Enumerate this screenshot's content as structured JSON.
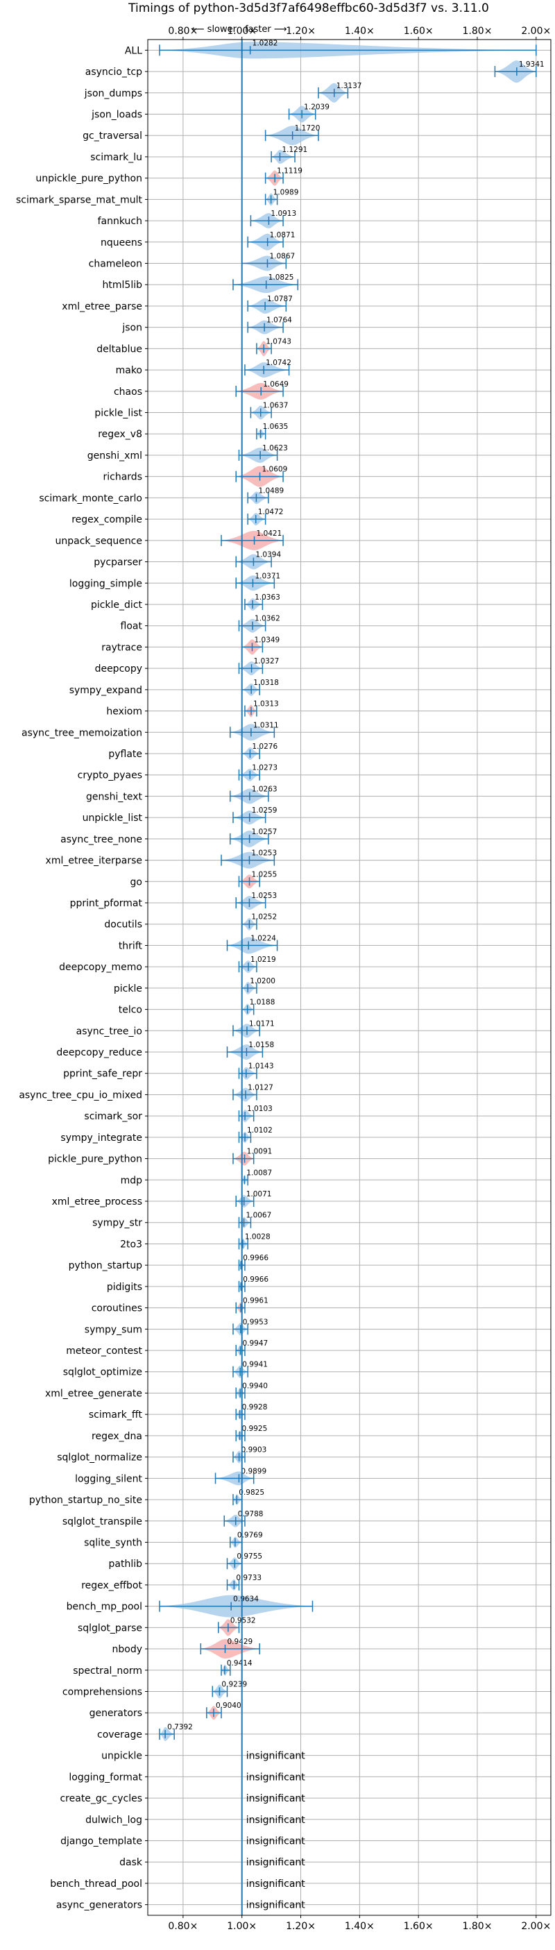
{
  "chart_data": {
    "type": "violin",
    "title": "Timings of python-3d5d3f7af6498effbc60-3d5d3f7 vs. 3.11.0",
    "xlim": [
      0.68,
      2.05
    ],
    "xticks": [
      0.8,
      1.0,
      1.2,
      1.4,
      1.6,
      1.8,
      2.0
    ],
    "xtick_labels": [
      "0.80×",
      "1.00×",
      "1.20×",
      "1.40×",
      "1.60×",
      "1.80×",
      "2.00×"
    ],
    "reference_line": 1.0,
    "direction_hint": {
      "slower": "⟵ slower",
      "faster": "faster ⟶"
    },
    "insignificant_label": "insignificant",
    "colors": {
      "faster": "#9fc5e8",
      "slower": "#f4a6a6",
      "line": "#1f77b4"
    },
    "benchmarks": [
      {
        "name": "ALL",
        "value": 1.0282,
        "label": "1.0282",
        "lo": 0.72,
        "hi": 2.0,
        "width": 12,
        "color": "faster"
      },
      {
        "name": "asyncio_tcp",
        "value": 1.9341,
        "label": "1.9341",
        "lo": 1.86,
        "hi": 2.0,
        "width": 16,
        "color": "faster"
      },
      {
        "name": "json_dumps",
        "value": 1.3137,
        "label": "1.3137",
        "lo": 1.26,
        "hi": 1.36,
        "width": 14,
        "color": "faster"
      },
      {
        "name": "json_loads",
        "value": 1.2039,
        "label": "1.2039",
        "lo": 1.16,
        "hi": 1.25,
        "width": 12,
        "color": "faster"
      },
      {
        "name": "gc_traversal",
        "value": 1.172,
        "label": "1.1720",
        "lo": 1.08,
        "hi": 1.26,
        "width": 14,
        "color": "faster"
      },
      {
        "name": "scimark_lu",
        "value": 1.1291,
        "label": "1.1291",
        "lo": 1.1,
        "hi": 1.18,
        "width": 10,
        "color": "faster"
      },
      {
        "name": "unpickle_pure_python",
        "value": 1.1119,
        "label": "1.1119",
        "lo": 1.08,
        "hi": 1.14,
        "width": 11,
        "color": "slower"
      },
      {
        "name": "scimark_sparse_mat_mult",
        "value": 1.0989,
        "label": "1.0989",
        "lo": 1.08,
        "hi": 1.12,
        "width": 9,
        "color": "faster"
      },
      {
        "name": "fannkuch",
        "value": 1.0913,
        "label": "1.0913",
        "lo": 1.03,
        "hi": 1.14,
        "width": 11,
        "color": "faster"
      },
      {
        "name": "nqueens",
        "value": 1.0871,
        "label": "1.0871",
        "lo": 1.02,
        "hi": 1.14,
        "width": 12,
        "color": "faster"
      },
      {
        "name": "chameleon",
        "value": 1.0867,
        "label": "1.0867",
        "lo": 1.0,
        "hi": 1.15,
        "width": 11,
        "color": "faster"
      },
      {
        "name": "html5lib",
        "value": 1.0825,
        "label": "1.0825",
        "lo": 0.97,
        "hi": 1.19,
        "width": 12,
        "color": "faster"
      },
      {
        "name": "xml_etree_parse",
        "value": 1.0787,
        "label": "1.0787",
        "lo": 1.02,
        "hi": 1.15,
        "width": 11,
        "color": "faster"
      },
      {
        "name": "json",
        "value": 1.0764,
        "label": "1.0764",
        "lo": 1.02,
        "hi": 1.14,
        "width": 10,
        "color": "faster"
      },
      {
        "name": "deltablue",
        "value": 1.0743,
        "label": "1.0743",
        "lo": 1.05,
        "hi": 1.1,
        "width": 11,
        "color": "slower"
      },
      {
        "name": "mako",
        "value": 1.0742,
        "label": "1.0742",
        "lo": 1.01,
        "hi": 1.16,
        "width": 11,
        "color": "faster"
      },
      {
        "name": "chaos",
        "value": 1.0649,
        "label": "1.0649",
        "lo": 0.98,
        "hi": 1.14,
        "width": 12,
        "color": "slower"
      },
      {
        "name": "pickle_list",
        "value": 1.0637,
        "label": "1.0637",
        "lo": 1.03,
        "hi": 1.1,
        "width": 10,
        "color": "faster"
      },
      {
        "name": "regex_v8",
        "value": 1.0635,
        "label": "1.0635",
        "lo": 1.05,
        "hi": 1.08,
        "width": 7,
        "color": "faster"
      },
      {
        "name": "genshi_xml",
        "value": 1.0623,
        "label": "1.0623",
        "lo": 0.99,
        "hi": 1.12,
        "width": 11,
        "color": "faster"
      },
      {
        "name": "richards",
        "value": 1.0609,
        "label": "1.0609",
        "lo": 0.98,
        "hi": 1.14,
        "width": 15,
        "color": "slower"
      },
      {
        "name": "scimark_monte_carlo",
        "value": 1.0489,
        "label": "1.0489",
        "lo": 1.02,
        "hi": 1.09,
        "width": 9,
        "color": "faster"
      },
      {
        "name": "regex_compile",
        "value": 1.0472,
        "label": "1.0472",
        "lo": 1.02,
        "hi": 1.08,
        "width": 9,
        "color": "faster"
      },
      {
        "name": "unpack_sequence",
        "value": 1.0421,
        "label": "1.0421",
        "lo": 0.93,
        "hi": 1.14,
        "width": 14,
        "color": "slower"
      },
      {
        "name": "pycparser",
        "value": 1.0394,
        "label": "1.0394",
        "lo": 0.98,
        "hi": 1.1,
        "width": 11,
        "color": "faster"
      },
      {
        "name": "logging_simple",
        "value": 1.0371,
        "label": "1.0371",
        "lo": 0.98,
        "hi": 1.11,
        "width": 11,
        "color": "faster"
      },
      {
        "name": "pickle_dict",
        "value": 1.0363,
        "label": "1.0363",
        "lo": 1.01,
        "hi": 1.07,
        "width": 9,
        "color": "faster"
      },
      {
        "name": "float",
        "value": 1.0362,
        "label": "1.0362",
        "lo": 0.99,
        "hi": 1.08,
        "width": 10,
        "color": "faster"
      },
      {
        "name": "raytrace",
        "value": 1.0349,
        "label": "1.0349",
        "lo": 1.0,
        "hi": 1.07,
        "width": 11,
        "color": "slower"
      },
      {
        "name": "deepcopy",
        "value": 1.0327,
        "label": "1.0327",
        "lo": 0.99,
        "hi": 1.07,
        "width": 10,
        "color": "faster"
      },
      {
        "name": "sympy_expand",
        "value": 1.0318,
        "label": "1.0318",
        "lo": 1.0,
        "hi": 1.06,
        "width": 9,
        "color": "faster"
      },
      {
        "name": "hexiom",
        "value": 1.0313,
        "label": "1.0313",
        "lo": 1.01,
        "hi": 1.05,
        "width": 9,
        "color": "slower"
      },
      {
        "name": "async_tree_memoization",
        "value": 1.0311,
        "label": "1.0311",
        "lo": 0.96,
        "hi": 1.11,
        "width": 12,
        "color": "faster"
      },
      {
        "name": "pyflate",
        "value": 1.0276,
        "label": "1.0276",
        "lo": 1.0,
        "hi": 1.06,
        "width": 9,
        "color": "faster"
      },
      {
        "name": "crypto_pyaes",
        "value": 1.0273,
        "label": "1.0273",
        "lo": 0.99,
        "hi": 1.06,
        "width": 9,
        "color": "faster"
      },
      {
        "name": "genshi_text",
        "value": 1.0263,
        "label": "1.0263",
        "lo": 0.96,
        "hi": 1.09,
        "width": 11,
        "color": "faster"
      },
      {
        "name": "unpickle_list",
        "value": 1.0259,
        "label": "1.0259",
        "lo": 0.97,
        "hi": 1.08,
        "width": 10,
        "color": "faster"
      },
      {
        "name": "async_tree_none",
        "value": 1.0257,
        "label": "1.0257",
        "lo": 0.96,
        "hi": 1.09,
        "width": 12,
        "color": "faster"
      },
      {
        "name": "xml_etree_iterparse",
        "value": 1.0253,
        "label": "1.0253",
        "lo": 0.93,
        "hi": 1.11,
        "width": 12,
        "color": "faster"
      },
      {
        "name": "go",
        "value": 1.0255,
        "label": "1.0255",
        "lo": 0.99,
        "hi": 1.06,
        "width": 10,
        "color": "slower"
      },
      {
        "name": "pprint_pformat",
        "value": 1.0253,
        "label": "1.0253",
        "lo": 0.98,
        "hi": 1.08,
        "width": 10,
        "color": "faster"
      },
      {
        "name": "docutils",
        "value": 1.0252,
        "label": "1.0252",
        "lo": 1.0,
        "hi": 1.05,
        "width": 9,
        "color": "faster"
      },
      {
        "name": "thrift",
        "value": 1.0224,
        "label": "1.0224",
        "lo": 0.95,
        "hi": 1.12,
        "width": 12,
        "color": "faster"
      },
      {
        "name": "deepcopy_memo",
        "value": 1.0219,
        "label": "1.0219",
        "lo": 0.99,
        "hi": 1.05,
        "width": 9,
        "color": "faster"
      },
      {
        "name": "pickle",
        "value": 1.02,
        "label": "1.0200",
        "lo": 1.0,
        "hi": 1.05,
        "width": 9,
        "color": "faster"
      },
      {
        "name": "telco",
        "value": 1.0188,
        "label": "1.0188",
        "lo": 1.0,
        "hi": 1.04,
        "width": 8,
        "color": "faster"
      },
      {
        "name": "async_tree_io",
        "value": 1.0171,
        "label": "1.0171",
        "lo": 0.97,
        "hi": 1.06,
        "width": 10,
        "color": "faster"
      },
      {
        "name": "deepcopy_reduce",
        "value": 1.0158,
        "label": "1.0158",
        "lo": 0.95,
        "hi": 1.07,
        "width": 11,
        "color": "faster"
      },
      {
        "name": "pprint_safe_repr",
        "value": 1.0143,
        "label": "1.0143",
        "lo": 0.99,
        "hi": 1.05,
        "width": 9,
        "color": "faster"
      },
      {
        "name": "async_tree_cpu_io_mixed",
        "value": 1.0127,
        "label": "1.0127",
        "lo": 0.97,
        "hi": 1.05,
        "width": 10,
        "color": "faster"
      },
      {
        "name": "scimark_sor",
        "value": 1.0103,
        "label": "1.0103",
        "lo": 0.99,
        "hi": 1.04,
        "width": 9,
        "color": "faster"
      },
      {
        "name": "sympy_integrate",
        "value": 1.0102,
        "label": "1.0102",
        "lo": 0.99,
        "hi": 1.03,
        "width": 8,
        "color": "faster"
      },
      {
        "name": "pickle_pure_python",
        "value": 1.0091,
        "label": "1.0091",
        "lo": 0.97,
        "hi": 1.04,
        "width": 10,
        "color": "slower"
      },
      {
        "name": "mdp",
        "value": 1.0087,
        "label": "1.0087",
        "lo": 1.0,
        "hi": 1.02,
        "width": 7,
        "color": "faster"
      },
      {
        "name": "xml_etree_process",
        "value": 1.0071,
        "label": "1.0071",
        "lo": 0.98,
        "hi": 1.04,
        "width": 9,
        "color": "faster"
      },
      {
        "name": "sympy_str",
        "value": 1.0067,
        "label": "1.0067",
        "lo": 0.99,
        "hi": 1.03,
        "width": 8,
        "color": "faster"
      },
      {
        "name": "2to3",
        "value": 1.0028,
        "label": "1.0028",
        "lo": 0.99,
        "hi": 1.02,
        "width": 8,
        "color": "faster"
      },
      {
        "name": "python_startup",
        "value": 0.9966,
        "label": "0.9966",
        "lo": 0.99,
        "hi": 1.01,
        "width": 7,
        "color": "faster"
      },
      {
        "name": "pidigits",
        "value": 0.9966,
        "label": "0.9966",
        "lo": 0.99,
        "hi": 1.01,
        "width": 7,
        "color": "faster"
      },
      {
        "name": "coroutines",
        "value": 0.9961,
        "label": "0.9961",
        "lo": 0.98,
        "hi": 1.01,
        "width": 8,
        "color": "slower"
      },
      {
        "name": "sympy_sum",
        "value": 0.9953,
        "label": "0.9953",
        "lo": 0.97,
        "hi": 1.02,
        "width": 9,
        "color": "faster"
      },
      {
        "name": "meteor_contest",
        "value": 0.9947,
        "label": "0.9947",
        "lo": 0.98,
        "hi": 1.01,
        "width": 8,
        "color": "faster"
      },
      {
        "name": "sqlglot_optimize",
        "value": 0.9941,
        "label": "0.9941",
        "lo": 0.97,
        "hi": 1.02,
        "width": 9,
        "color": "faster"
      },
      {
        "name": "xml_etree_generate",
        "value": 0.994,
        "label": "0.9940",
        "lo": 0.98,
        "hi": 1.01,
        "width": 8,
        "color": "faster"
      },
      {
        "name": "scimark_fft",
        "value": 0.9928,
        "label": "0.9928",
        "lo": 0.98,
        "hi": 1.01,
        "width": 7,
        "color": "faster"
      },
      {
        "name": "regex_dna",
        "value": 0.9925,
        "label": "0.9925",
        "lo": 0.98,
        "hi": 1.01,
        "width": 7,
        "color": "faster"
      },
      {
        "name": "sqlglot_normalize",
        "value": 0.9903,
        "label": "0.9903",
        "lo": 0.97,
        "hi": 1.01,
        "width": 9,
        "color": "faster"
      },
      {
        "name": "logging_silent",
        "value": 0.9899,
        "label": "0.9899",
        "lo": 0.91,
        "hi": 1.04,
        "width": 10,
        "color": "faster"
      },
      {
        "name": "python_startup_no_site",
        "value": 0.9825,
        "label": "0.9825",
        "lo": 0.97,
        "hi": 1.0,
        "width": 8,
        "color": "faster"
      },
      {
        "name": "sqlglot_transpile",
        "value": 0.9788,
        "label": "0.9788",
        "lo": 0.94,
        "hi": 1.01,
        "width": 9,
        "color": "faster"
      },
      {
        "name": "sqlite_synth",
        "value": 0.9769,
        "label": "0.9769",
        "lo": 0.96,
        "hi": 1.0,
        "width": 8,
        "color": "faster"
      },
      {
        "name": "pathlib",
        "value": 0.9755,
        "label": "0.9755",
        "lo": 0.95,
        "hi": 1.0,
        "width": 9,
        "color": "faster"
      },
      {
        "name": "regex_effbot",
        "value": 0.9733,
        "label": "0.9733",
        "lo": 0.95,
        "hi": 0.99,
        "width": 8,
        "color": "faster"
      },
      {
        "name": "bench_mp_pool",
        "value": 0.9634,
        "label": "0.9634",
        "lo": 0.72,
        "hi": 1.24,
        "width": 16,
        "color": "faster"
      },
      {
        "name": "sqlglot_parse",
        "value": 0.9532,
        "label": "0.9532",
        "lo": 0.92,
        "hi": 0.99,
        "width": 12,
        "color": "slower"
      },
      {
        "name": "nbody",
        "value": 0.9429,
        "label": "0.9429",
        "lo": 0.86,
        "hi": 1.06,
        "width": 14,
        "color": "slower"
      },
      {
        "name": "spectral_norm",
        "value": 0.9414,
        "label": "0.9414",
        "lo": 0.93,
        "hi": 0.96,
        "width": 8,
        "color": "faster"
      },
      {
        "name": "comprehensions",
        "value": 0.9239,
        "label": "0.9239",
        "lo": 0.9,
        "hi": 0.95,
        "width": 10,
        "color": "faster"
      },
      {
        "name": "generators",
        "value": 0.904,
        "label": "0.9040",
        "lo": 0.88,
        "hi": 0.93,
        "width": 10,
        "color": "slower"
      },
      {
        "name": "coverage",
        "value": 0.7392,
        "label": "0.7392",
        "lo": 0.72,
        "hi": 0.77,
        "width": 10,
        "color": "faster"
      },
      {
        "name": "unpickle",
        "insignificant": true
      },
      {
        "name": "logging_format",
        "insignificant": true
      },
      {
        "name": "create_gc_cycles",
        "insignificant": true
      },
      {
        "name": "dulwich_log",
        "insignificant": true
      },
      {
        "name": "django_template",
        "insignificant": true
      },
      {
        "name": "dask",
        "insignificant": true
      },
      {
        "name": "bench_thread_pool",
        "insignificant": true
      },
      {
        "name": "async_generators",
        "insignificant": true
      }
    ]
  }
}
